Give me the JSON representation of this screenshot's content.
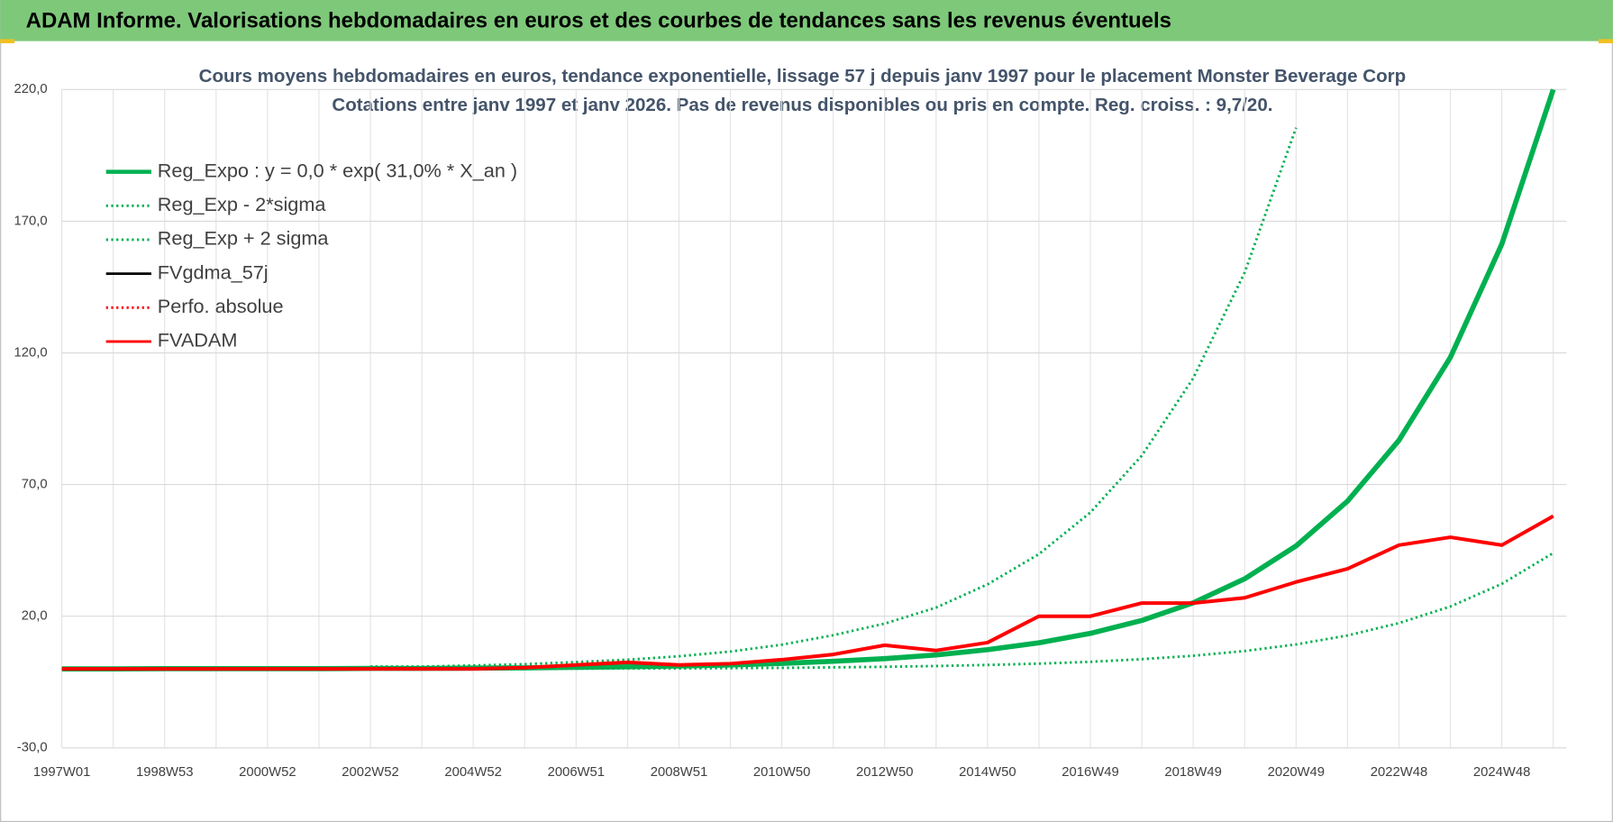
{
  "header": {
    "title": "ADAM Informe. Valorisations hebdomadaires en euros et des courbes de tendances sans les revenus éventuels"
  },
  "chart_data": {
    "type": "line",
    "title": "Cours moyens hebdomadaires en euros, tendance exponentielle, lissage 57 j depuis janv 1997 pour le placement Monster Beverage Corp",
    "subtitle": "Cotations entre janv 1997 et janv 2026. Pas de revenus disponibles ou pris en compte. Reg. croiss. : 9,7/20.",
    "categories": [
      "1997W01",
      null,
      "1998W53",
      null,
      "2000W52",
      null,
      "2002W52",
      null,
      "2004W52",
      null,
      "2006W51",
      null,
      "2008W51",
      null,
      "2010W50",
      null,
      "2012W50",
      null,
      "2014W50",
      null,
      "2016W49",
      null,
      "2018W49",
      null,
      "2020W49",
      null,
      "2022W48",
      null,
      "2024W48",
      null
    ],
    "ylim": [
      -30,
      220
    ],
    "yticks": [
      {
        "value": -30,
        "label": "-30,0"
      },
      {
        "value": 20,
        "label": "20,0"
      },
      {
        "value": 70,
        "label": "70,0"
      },
      {
        "value": 120,
        "label": "120,0"
      },
      {
        "value": 170,
        "label": "170,0"
      },
      {
        "value": 220,
        "label": "220,0"
      }
    ],
    "grid": true,
    "legend": "upper-left",
    "series": [
      {
        "name": "Reg_Expo : y = 0,0 * exp( 31,0% *  X_an )",
        "color": "#00b050",
        "line_style": "solid",
        "values": [
          0,
          0,
          0.1,
          0.1,
          0.1,
          0.1,
          0.2,
          0.2,
          0.3,
          0.4,
          0.6,
          0.8,
          1.1,
          1.5,
          2.1,
          2.9,
          3.9,
          5.3,
          7.3,
          9.9,
          13.5,
          18.4,
          25.1,
          34.2,
          46.7,
          63.7,
          86.8,
          118.3,
          161.3,
          220
        ]
      },
      {
        "name": "Reg_Exp - 2*sigma",
        "color": "#00b050",
        "line_style": "dotted",
        "values": [
          null,
          null,
          null,
          null,
          null,
          null,
          null,
          null,
          null,
          0.1,
          0.1,
          0.2,
          0.2,
          0.3,
          0.4,
          0.6,
          0.8,
          1.1,
          1.5,
          2,
          2.7,
          3.7,
          5,
          6.8,
          9.3,
          12.7,
          17.4,
          23.7,
          32.3,
          44
        ]
      },
      {
        "name": "Reg_Exp + 2 sigma",
        "color": "#00b050",
        "line_style": "dotted",
        "values": [
          null,
          null,
          null,
          null,
          null,
          null,
          0.9,
          0.9,
          1.3,
          1.8,
          2.6,
          3.5,
          4.8,
          6.6,
          9.2,
          12.8,
          17.2,
          23.3,
          32.1,
          43.6,
          59.4,
          81,
          110.4,
          150.5,
          205.5,
          null,
          null,
          null,
          null,
          null
        ]
      },
      {
        "name": "FVgdma_57j",
        "color": "#000000",
        "line_style": "solid",
        "values": [
          0,
          0,
          0,
          0,
          0,
          0,
          0,
          0,
          0,
          0.5,
          1.5,
          2.5,
          1.5,
          2,
          3.5,
          5.5,
          9,
          7,
          10,
          20,
          20,
          25,
          25,
          27,
          33,
          38,
          47,
          50,
          47,
          58
        ]
      },
      {
        "name": "Perfo. absolue",
        "color": "#ff0000",
        "line_style": "dotted",
        "values": [
          0,
          0,
          0,
          0,
          0,
          0,
          0,
          0,
          0,
          0.5,
          1.5,
          2.5,
          1.5,
          2,
          3.5,
          5.5,
          9,
          7,
          10,
          20,
          20,
          25,
          25,
          27,
          33,
          38,
          47,
          50,
          47,
          58
        ]
      },
      {
        "name": "FVADAM",
        "color": "#ff0000",
        "line_style": "solid",
        "values": [
          0,
          0,
          0,
          0,
          0,
          0,
          0,
          0,
          0,
          0.5,
          1.5,
          2.5,
          1.5,
          2,
          3.5,
          5.5,
          9,
          7,
          10,
          20,
          20,
          25,
          25,
          27,
          33,
          38,
          47,
          50,
          47,
          58
        ]
      }
    ]
  }
}
